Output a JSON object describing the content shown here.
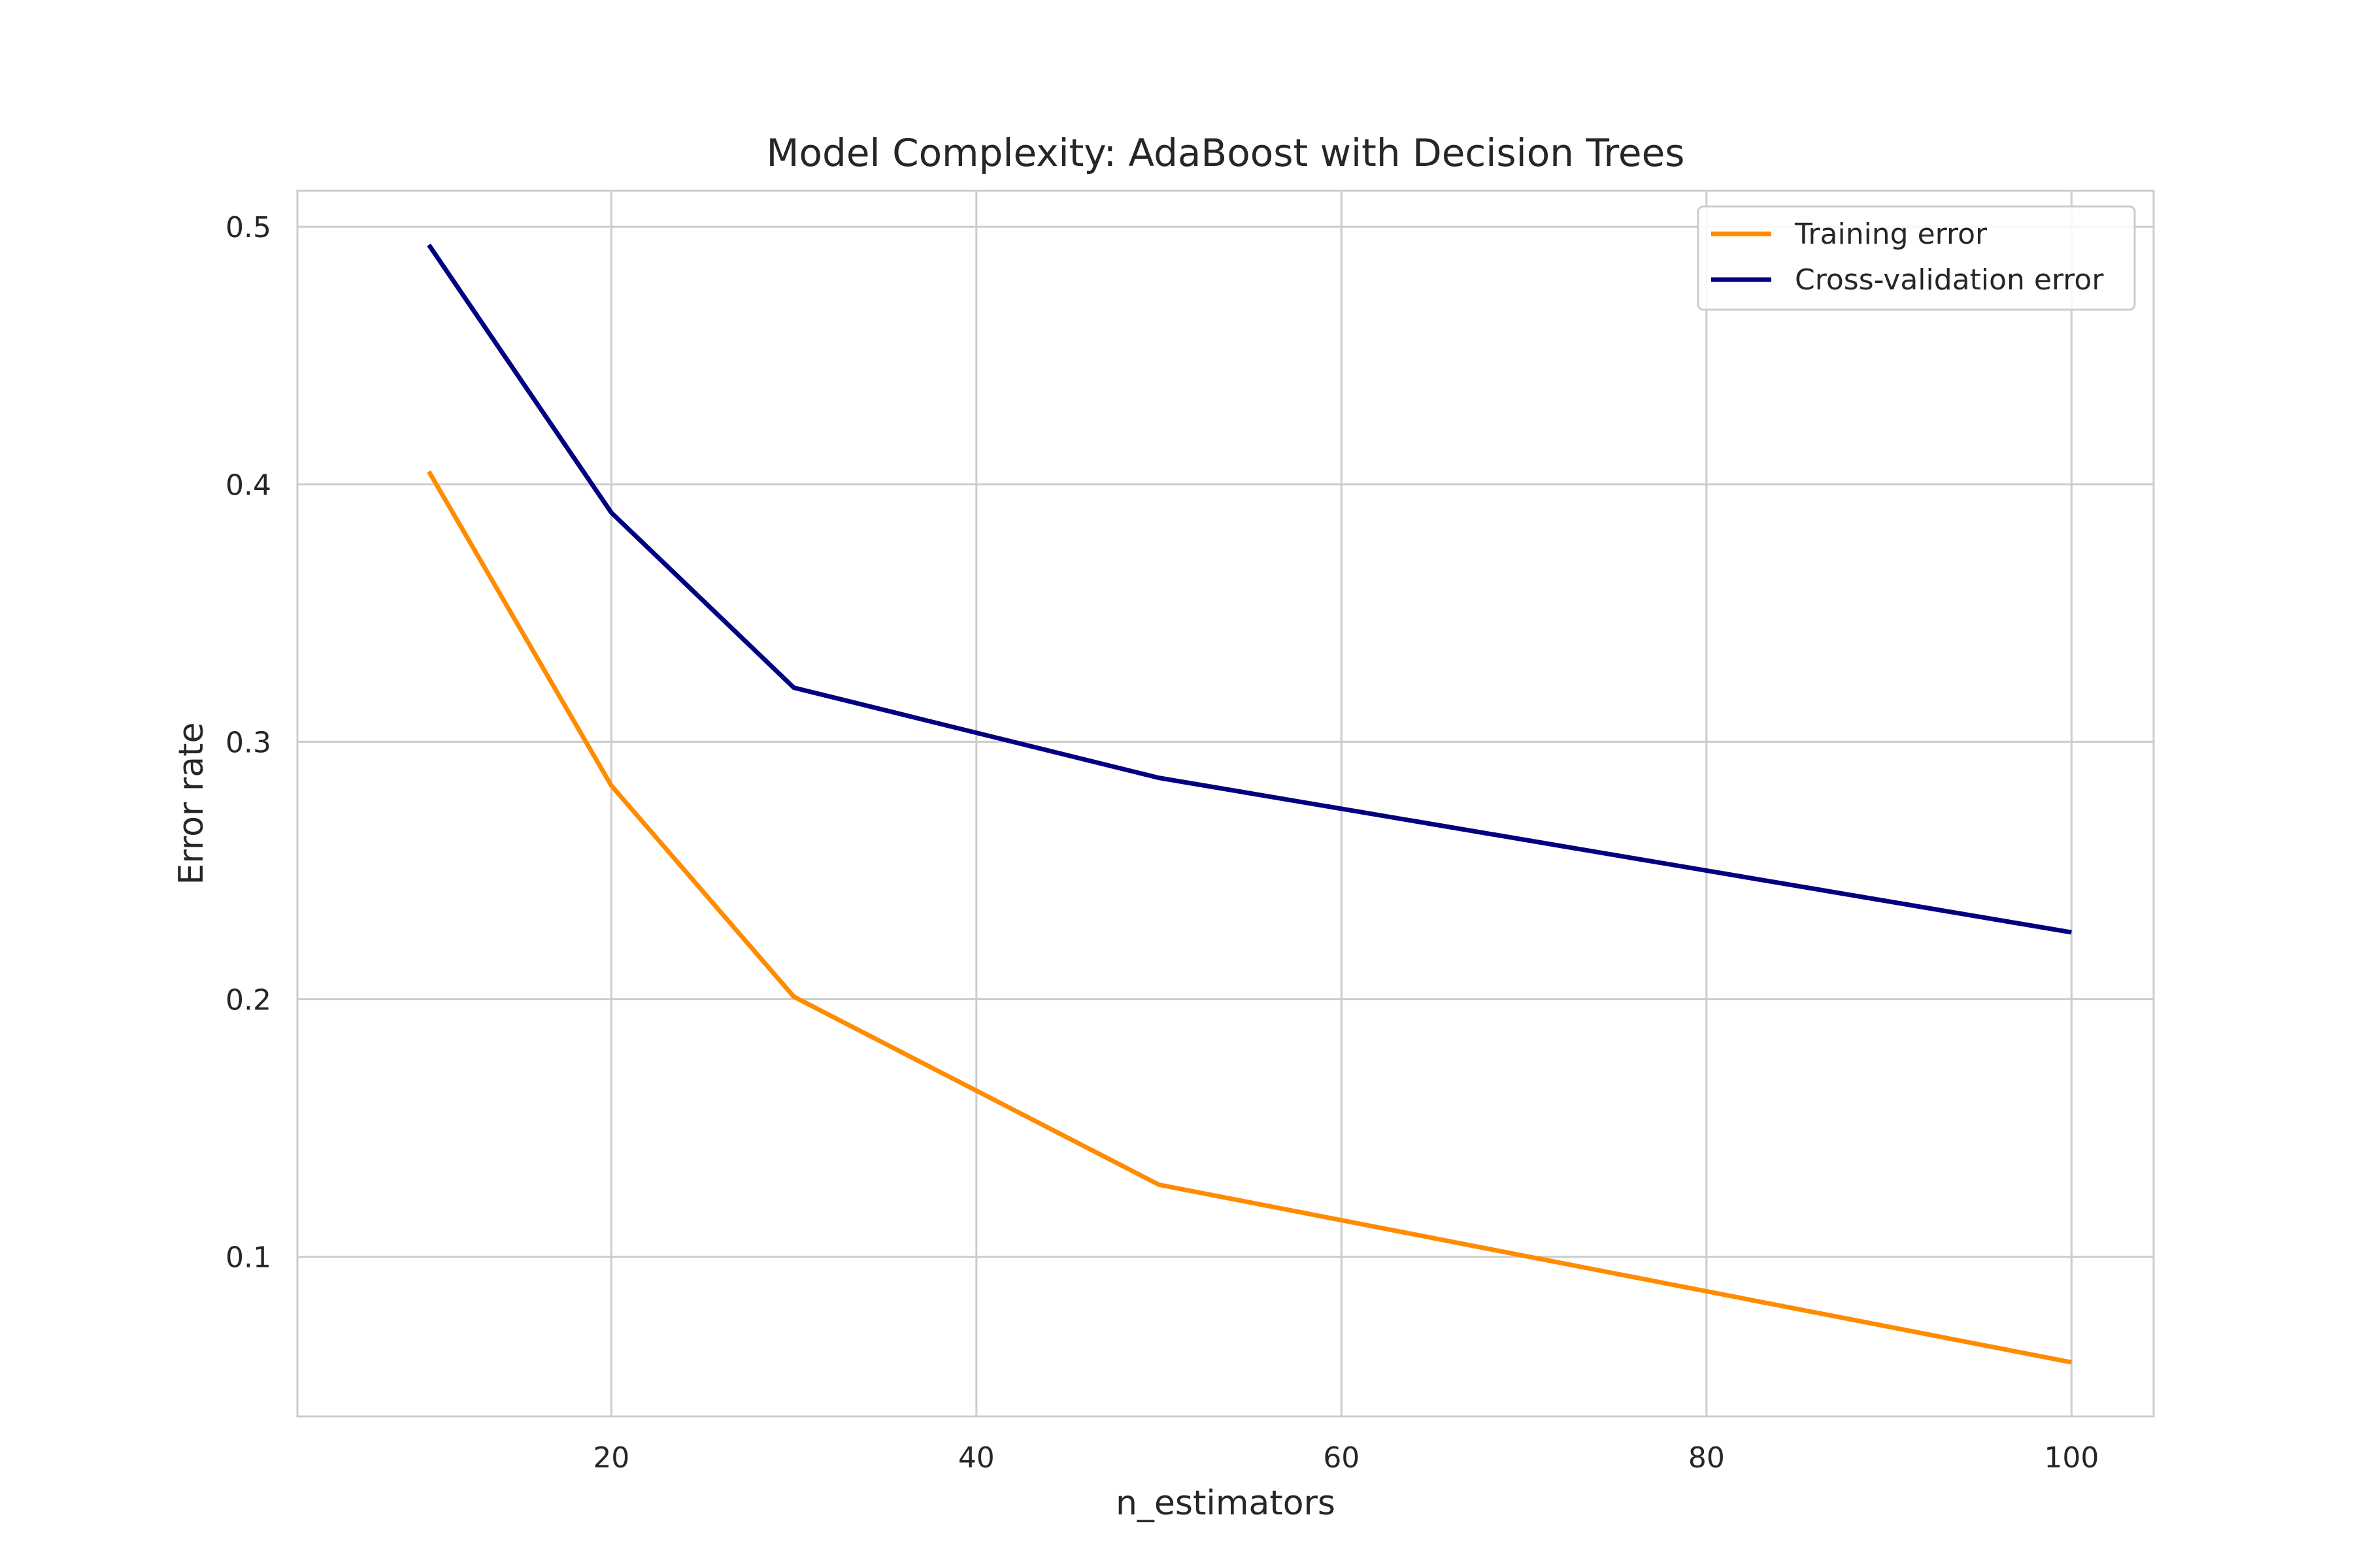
{
  "chart_data": {
    "type": "line",
    "title": "Model Complexity: AdaBoost with Decision Trees",
    "xlabel": "n_estimators",
    "ylabel": "Error rate",
    "x": [
      10,
      20,
      30,
      50,
      100
    ],
    "xlim": [
      2.8,
      104.5
    ],
    "ylim": [
      0.038,
      0.514
    ],
    "xticks": [
      20,
      40,
      60,
      80,
      100
    ],
    "yticks": [
      0.1,
      0.2,
      0.3,
      0.4,
      0.5
    ],
    "xtick_labels": [
      "20",
      "40",
      "60",
      "80",
      "100"
    ],
    "ytick_labels": [
      "0.1",
      "0.2",
      "0.3",
      "0.4",
      "0.5"
    ],
    "grid": true,
    "legend_position": "top-right",
    "series": [
      {
        "name": "Training error",
        "color": "#ff8c00",
        "values": [
          0.405,
          0.283,
          0.201,
          0.128,
          0.059
        ]
      },
      {
        "name": "Cross-validation error",
        "color": "#000080",
        "values": [
          0.493,
          0.389,
          0.321,
          0.286,
          0.226
        ]
      }
    ]
  }
}
